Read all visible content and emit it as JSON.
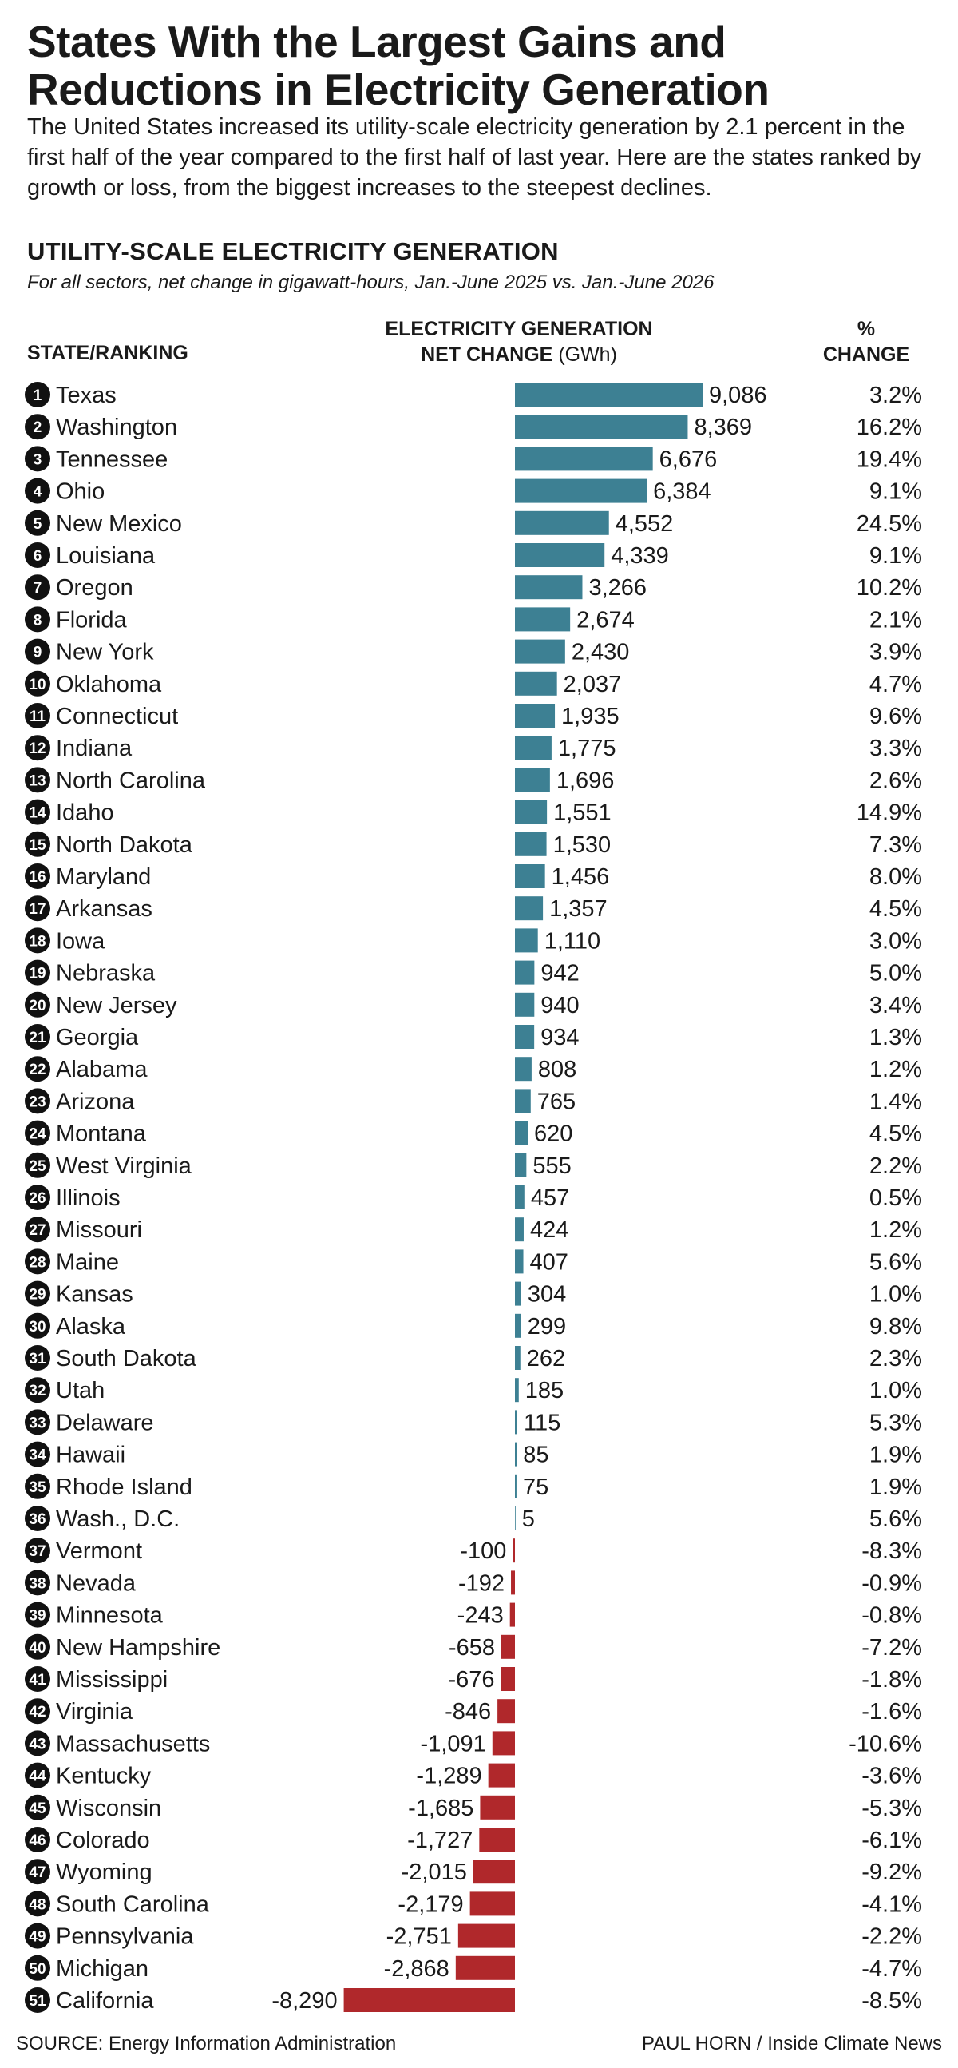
{
  "title": "States With the Largest Gains and Reductions in Electricity Generation",
  "intro": "The United States increased its utility-scale electricity generation by 2.1 percent in the first half of the year compared to the first half of last year. Here are the states ranked by growth or loss, from the biggest increases to the steepest declines.",
  "section_title": "UTILITY-SCALE ELECTRICITY GENERATION",
  "section_subtitle": "For all sectors, net change in gigawatt-hours, Jan.-June 2025 vs. Jan.-June 2026",
  "headers": {
    "state": "STATE/RANKING",
    "gen_line1": "ELECTRICITY GENERATION",
    "gen_line2_bold": "NET CHANGE",
    "gen_line2_unit": "(GWh)",
    "pct_line1": "%",
    "pct_line2": "CHANGE"
  },
  "colors": {
    "positive": "#3d8093",
    "negative": "#b0282b",
    "badge": "#111111"
  },
  "chart_data": {
    "type": "bar",
    "orientation": "horizontal",
    "categories": [
      "Texas",
      "Washington",
      "Tennessee",
      "Ohio",
      "New Mexico",
      "Louisiana",
      "Oregon",
      "Florida",
      "New York",
      "Oklahoma",
      "Connecticut",
      "Indiana",
      "North Carolina",
      "Idaho",
      "North Dakota",
      "Maryland",
      "Arkansas",
      "Iowa",
      "Nebraska",
      "New Jersey",
      "Georgia",
      "Alabama",
      "Arizona",
      "Montana",
      "West Virginia",
      "Illinois",
      "Missouri",
      "Maine",
      "Kansas",
      "Alaska",
      "South Dakota",
      "Utah",
      "Delaware",
      "Hawaii",
      "Rhode Island",
      "Wash., D.C.",
      "Vermont",
      "Nevada",
      "Minnesota",
      "New Hampshire",
      "Mississippi",
      "Virginia",
      "Massachusetts",
      "Kentucky",
      "Wisconsin",
      "Colorado",
      "Wyoming",
      "South Carolina",
      "Pennsylvania",
      "Michigan",
      "California"
    ],
    "values": [
      9086,
      8369,
      6676,
      6384,
      4552,
      4339,
      3266,
      2674,
      2430,
      2037,
      1935,
      1775,
      1696,
      1551,
      1530,
      1456,
      1357,
      1110,
      942,
      940,
      934,
      808,
      765,
      620,
      555,
      457,
      424,
      407,
      304,
      299,
      262,
      185,
      115,
      85,
      75,
      5,
      -100,
      -192,
      -243,
      -658,
      -676,
      -846,
      -1091,
      -1289,
      -1685,
      -1727,
      -2015,
      -2179,
      -2751,
      -2868,
      -8290
    ],
    "value_labels": [
      "9,086",
      "8,369",
      "6,676",
      "6,384",
      "4,552",
      "4,339",
      "3,266",
      "2,674",
      "2,430",
      "2,037",
      "1,935",
      "1,775",
      "1,696",
      "1,551",
      "1,530",
      "1,456",
      "1,357",
      "1,110",
      "942",
      "940",
      "934",
      "808",
      "765",
      "620",
      "555",
      "457",
      "424",
      "407",
      "304",
      "299",
      "262",
      "185",
      "115",
      "85",
      "75",
      "5",
      "-100",
      "-192",
      "-243",
      "-658",
      "-676",
      "-846",
      "-1,091",
      "-1,289",
      "-1,685",
      "-1,727",
      "-2,015",
      "-2,179",
      "-2,751",
      "-2,868",
      "-8,290"
    ],
    "pct_change": [
      "3.2%",
      "16.2%",
      "19.4%",
      "9.1%",
      "24.5%",
      "9.1%",
      "10.2%",
      "2.1%",
      "3.9%",
      "4.7%",
      "9.6%",
      "3.3%",
      "2.6%",
      "14.9%",
      "7.3%",
      "8.0%",
      "4.5%",
      "3.0%",
      "5.0%",
      "3.4%",
      "1.3%",
      "1.2%",
      "1.4%",
      "4.5%",
      "2.2%",
      "0.5%",
      "1.2%",
      "5.6%",
      "1.0%",
      "9.8%",
      "2.3%",
      "1.0%",
      "5.3%",
      "1.9%",
      "1.9%",
      "5.6%",
      "-8.3%",
      "-0.9%",
      "-0.8%",
      "-7.2%",
      "-1.8%",
      "-1.6%",
      "-10.6%",
      "-3.6%",
      "-5.3%",
      "-6.1%",
      "-9.2%",
      "-4.1%",
      "-2.2%",
      "-4.7%",
      "-8.5%"
    ],
    "xlim": [
      -8290,
      9086
    ]
  },
  "footer": {
    "source": "SOURCE: Energy Information Administration",
    "credit": "PAUL HORN / Inside Climate News"
  }
}
